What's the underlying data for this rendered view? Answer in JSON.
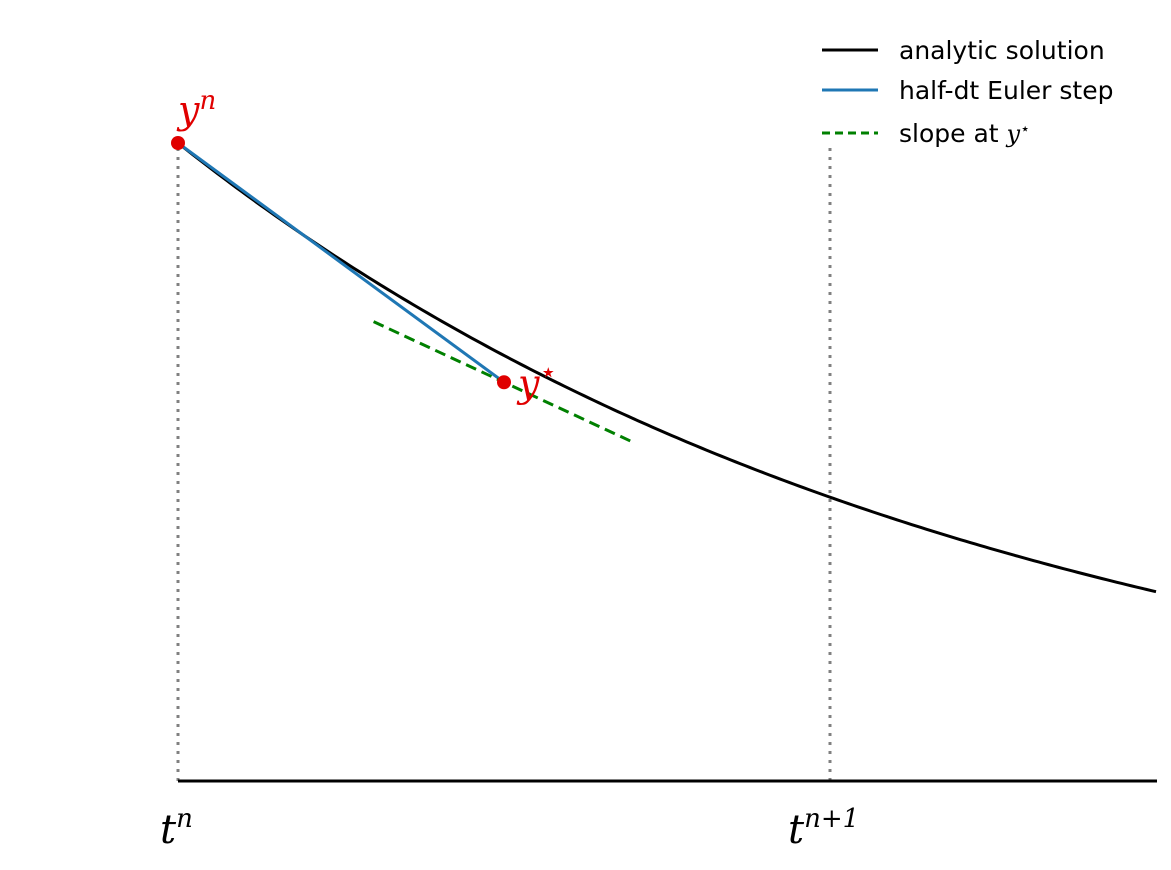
{
  "chart_data": {
    "type": "line",
    "title": "",
    "xlabel": "",
    "ylabel": "",
    "xlim": [
      0,
      1.5
    ],
    "ylim": [
      0,
      1.0
    ],
    "x_ticks": [
      {
        "value": 0,
        "base": "t",
        "sup": "n"
      },
      {
        "value": 1,
        "base": "t",
        "sup": "n+1"
      }
    ],
    "series": [
      {
        "name": "analytic solution",
        "style": "solid",
        "color": "#000000",
        "function": "exp(-0.81*t)",
        "x_range": [
          0,
          1.5
        ]
      },
      {
        "name": "half-dt Euler step",
        "style": "solid",
        "color": "#1f77b4",
        "x": [
          0,
          0.5
        ],
        "y": [
          1.0,
          0.625
        ]
      },
      {
        "name_prefix": "slope at ",
        "name_math": "y",
        "name_math_sup": "⋆",
        "style": "dashed",
        "color": "#008000",
        "x": [
          0.3,
          0.7
        ],
        "y": [
          0.72,
          0.53
        ]
      }
    ],
    "points": [
      {
        "x": 0,
        "y": 1.0,
        "label": "y",
        "sup": "n",
        "color": "#e00000"
      },
      {
        "x": 0.5,
        "y": 0.625,
        "label": "y",
        "sup": "⋆",
        "color": "#e00000"
      }
    ],
    "reference_lines": [
      {
        "x": 0,
        "style": "dotted",
        "color": "#808080",
        "y_to": 1.0
      },
      {
        "x": 1,
        "style": "dotted",
        "color": "#808080",
        "y_to": 1.0
      }
    ],
    "legend_position": "top-right",
    "grid": false
  }
}
